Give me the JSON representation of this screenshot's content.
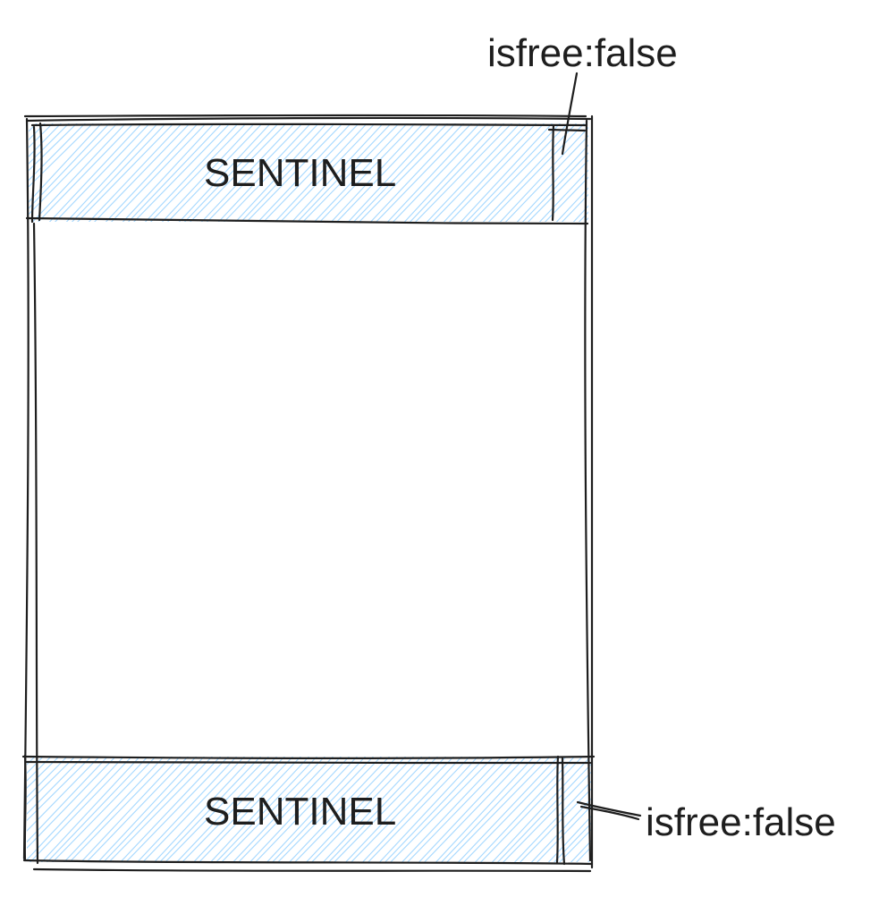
{
  "colors": {
    "stroke": "#1e1e1e",
    "hatch": "#a5d8ff",
    "background": "#ffffff"
  },
  "blocks": {
    "top_sentinel": {
      "label": "SENTINEL",
      "flag_label": "isfree:false"
    },
    "bottom_sentinel": {
      "label": "SENTINEL",
      "flag_label": "isfree:false"
    }
  }
}
